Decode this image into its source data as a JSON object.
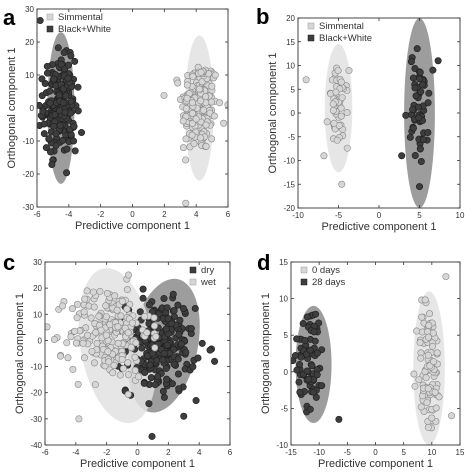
{
  "colors": {
    "dark": "#3d3d3d",
    "light": "#d6d6d6",
    "dark_ellipse": "#8c8c8c",
    "light_ellipse": "#e2e2e2"
  },
  "chart_data": [
    {
      "panel": "a",
      "type": "scatter",
      "xlabel": "Predictive component 1",
      "ylabel": "Orthogonal component 1",
      "xlim": [
        -6,
        6
      ],
      "ylim": [
        -30,
        30
      ],
      "xticks": [
        -6,
        -4,
        -2,
        0,
        2,
        4,
        6
      ],
      "yticks": [
        -30,
        -20,
        -10,
        0,
        10,
        20,
        30
      ],
      "legend": "top-left",
      "series": [
        {
          "name": "Simmental",
          "color": "light",
          "center": [
            4.2,
            0.5
          ],
          "sd": [
            0.55,
            7
          ],
          "n": 220,
          "ellipse": {
            "cx": 4.2,
            "cy": 0,
            "rx": 0.9,
            "ry": 22
          },
          "extra": [
            [
              6,
              1
            ],
            [
              3.2,
              -12
            ],
            [
              5.2,
              10
            ]
          ]
        },
        {
          "name": "Black+White",
          "color": "dark",
          "center": [
            -4.6,
            0.5
          ],
          "sd": [
            0.5,
            7
          ],
          "n": 220,
          "ellipse": {
            "cx": -4.5,
            "cy": 0,
            "rx": 0.85,
            "ry": 23
          },
          "extra": [
            [
              -5.8,
              26.5
            ],
            [
              -3.6,
              -13
            ],
            [
              -3.7,
              -10
            ]
          ]
        }
      ]
    },
    {
      "panel": "b",
      "type": "scatter",
      "xlabel": "Predictive component 1",
      "ylabel": "Orthogonal component 1",
      "xlim": [
        -10,
        10
      ],
      "ylim": [
        -20,
        20
      ],
      "xticks": [
        -10,
        -5,
        0,
        5,
        10
      ],
      "yticks": [
        -20,
        -15,
        -10,
        -5,
        0,
        5,
        10,
        15,
        20
      ],
      "legend": "top-left",
      "series": [
        {
          "name": "Simmental",
          "color": "light",
          "center": [
            -5,
            1
          ],
          "sd": [
            0.6,
            4
          ],
          "n": 55,
          "ellipse": {
            "cx": -5,
            "cy": 1,
            "rx": 1.7,
            "ry": 13.5
          },
          "extra": [
            [
              -9,
              7
            ],
            [
              -6.8,
              -9
            ],
            [
              -4.6,
              -15
            ]
          ]
        },
        {
          "name": "Black+White",
          "color": "dark",
          "center": [
            5,
            1
          ],
          "sd": [
            0.55,
            6
          ],
          "n": 60,
          "ellipse": {
            "cx": 5,
            "cy": 0,
            "rx": 1.9,
            "ry": 20
          },
          "extra": [
            [
              3.3,
              -0.5
            ],
            [
              7.3,
              11
            ],
            [
              2.8,
              -9
            ]
          ]
        }
      ]
    },
    {
      "panel": "c",
      "type": "scatter",
      "xlabel": "Predictive component 1",
      "ylabel": "Orthogonal component 1",
      "xlim": [
        -6,
        6
      ],
      "ylim": [
        -40,
        30
      ],
      "xticks": [
        -6,
        -4,
        -2,
        0,
        2,
        4,
        6
      ],
      "yticks": [
        -40,
        -30,
        -20,
        -10,
        0,
        10,
        20,
        30
      ],
      "legend": "top-right",
      "series": [
        {
          "name": "dry",
          "color": "dark",
          "center": [
            1.5,
            -2
          ],
          "sd": [
            1.1,
            9
          ],
          "n": 220,
          "ellipse": {
            "cx": 1.7,
            "cy": -2,
            "rx": 2.2,
            "ry": 26,
            "rot": 12
          },
          "extra": [
            [
              5,
              -8
            ],
            [
              3.8,
              -23
            ]
          ]
        },
        {
          "name": "wet",
          "color": "light",
          "center": [
            -1.8,
            3
          ],
          "sd": [
            1.3,
            9
          ],
          "n": 220,
          "ellipse": {
            "cx": -1.3,
            "cy": -2,
            "rx": 2.4,
            "ry": 30,
            "rot": -10
          },
          "extra": [
            [
              -5,
              -6
            ],
            [
              -3.8,
              -30
            ]
          ]
        }
      ]
    },
    {
      "panel": "d",
      "type": "scatter",
      "xlabel": "Predictive component 1",
      "ylabel": "Orthogonal component 1",
      "xlim": [
        -15,
        15
      ],
      "ylim": [
        -10,
        15
      ],
      "xticks": [
        -15,
        -10,
        -5,
        0,
        5,
        10,
        15
      ],
      "yticks": [
        -10,
        -5,
        0,
        5,
        10,
        15
      ],
      "legend": "top-left",
      "series": [
        {
          "name": "0 days",
          "color": "light",
          "center": [
            9.5,
            0.5
          ],
          "sd": [
            1.1,
            4.5
          ],
          "n": 100,
          "ellipse": {
            "cx": 9.5,
            "cy": 0.5,
            "rx": 2.8,
            "ry": 10.5
          },
          "extra": [
            [
              13.5,
              -6
            ],
            [
              12.5,
              13
            ]
          ]
        },
        {
          "name": "28 days",
          "color": "dark",
          "center": [
            -11.5,
            2
          ],
          "sd": [
            1.2,
            3.5
          ],
          "n": 75,
          "ellipse": {
            "cx": -11,
            "cy": 1,
            "rx": 3.2,
            "ry": 8
          },
          "extra": [
            [
              -6.5,
              -6.5
            ],
            [
              -14,
              4.5
            ]
          ]
        }
      ]
    }
  ]
}
